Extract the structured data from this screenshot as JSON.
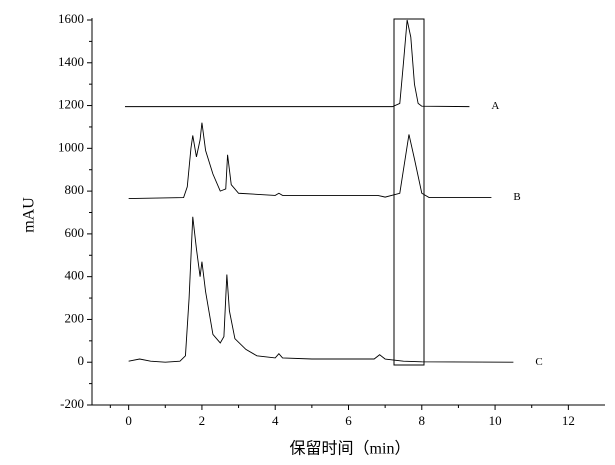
{
  "chart_data": {
    "type": "line",
    "x_label": "保留时间（min）",
    "y_label": "mAU",
    "xlim": [
      -1,
      13
    ],
    "ylim": [
      -200,
      1600
    ],
    "xticks": [
      0,
      2,
      4,
      6,
      8,
      10,
      12
    ],
    "yticks": [
      -200,
      0,
      200,
      400,
      600,
      800,
      1000,
      1200,
      1400,
      1600
    ],
    "series": [
      {
        "name": "A",
        "color": "#000000",
        "x": [
          -0.1,
          7.2,
          7.4,
          7.5,
          7.6,
          7.7,
          7.8,
          7.9,
          8.0,
          9.3
        ],
        "values": [
          1195,
          1195,
          1210,
          1400,
          1600,
          1520,
          1300,
          1210,
          1197,
          1195
        ]
      },
      {
        "name": "B",
        "color": "#000000",
        "x": [
          0,
          1.5,
          1.6,
          1.7,
          1.75,
          1.85,
          1.95,
          2.0,
          2.1,
          2.3,
          2.5,
          2.65,
          2.7,
          2.8,
          3.0,
          4.0,
          4.1,
          4.2,
          6.8,
          7.0,
          7.4,
          7.5,
          7.65,
          7.8,
          8.0,
          8.2,
          9.9
        ],
        "values": [
          765,
          770,
          820,
          1000,
          1060,
          960,
          1040,
          1120,
          990,
          880,
          800,
          810,
          970,
          830,
          790,
          780,
          790,
          780,
          780,
          772,
          790,
          900,
          1065,
          950,
          790,
          770,
          770
        ]
      },
      {
        "name": "C",
        "color": "#000000",
        "x": [
          0,
          0.3,
          0.6,
          1.0,
          1.4,
          1.55,
          1.65,
          1.75,
          1.85,
          1.95,
          2.0,
          2.1,
          2.3,
          2.5,
          2.6,
          2.68,
          2.75,
          2.9,
          3.2,
          3.5,
          4.0,
          4.1,
          4.2,
          5.0,
          6.7,
          6.85,
          7.0,
          7.5,
          8.0,
          10.5
        ],
        "values": [
          5,
          15,
          5,
          0,
          5,
          30,
          300,
          680,
          530,
          400,
          470,
          330,
          130,
          90,
          120,
          410,
          240,
          110,
          60,
          30,
          20,
          40,
          20,
          15,
          15,
          35,
          15,
          5,
          2,
          0
        ]
      }
    ]
  }
}
